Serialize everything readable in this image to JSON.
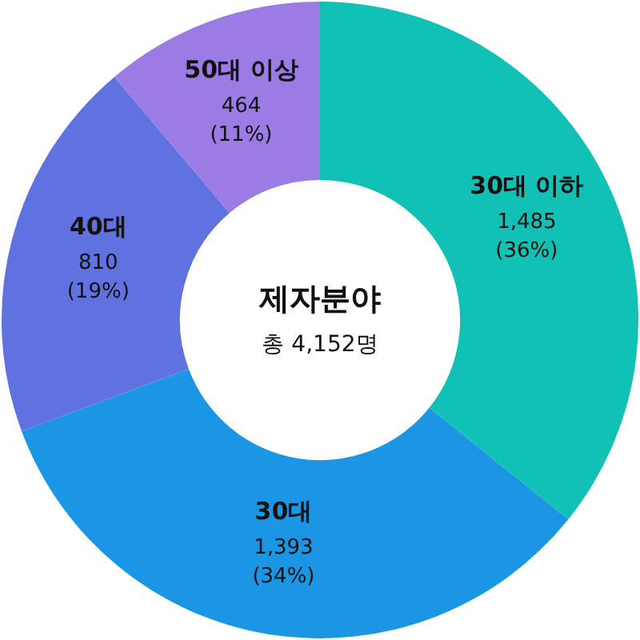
{
  "chart_data": {
    "type": "donut",
    "title": "제자분야",
    "subtitle": "총 4,152명",
    "categories": [
      "30대 이하",
      "30대",
      "40대",
      "50대 이상"
    ],
    "values": [
      1485,
      1393,
      810,
      464
    ],
    "colors": [
      "#12c1b5",
      "#1a96e4",
      "#5f72e0",
      "#9b7be4"
    ],
    "value_labels": [
      "1,485\n(36%)",
      "1,393\n(34%)",
      "810\n(19%)",
      "464\n(11%)"
    ]
  }
}
